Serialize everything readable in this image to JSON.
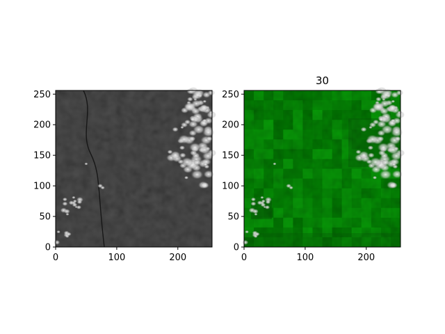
{
  "figure": {
    "background": "#ffffff"
  },
  "chart_data": [
    {
      "type": "heatmap",
      "title": "",
      "xlabel": "",
      "ylabel": "",
      "xlim": [
        0,
        256
      ],
      "ylim": [
        0,
        256
      ],
      "xticks": [
        0,
        100,
        200
      ],
      "yticks": [
        0,
        50,
        100,
        150,
        200,
        250
      ],
      "colormap": "grayscale satellite image",
      "colors": {
        "dark": "#151515",
        "mid": "#2a2a2a",
        "bright": "#e8e8e8"
      },
      "features": {
        "bright_clouds_region": "right edge, roughly x 180–256, y 100–256",
        "scattered_clouds_left": "around x 10–40, y 50–85",
        "small_bright_spot": "around x 70–80, y 95–105"
      }
    },
    {
      "type": "heatmap",
      "title": "30",
      "xlabel": "",
      "ylabel": "",
      "xlim": [
        0,
        256
      ],
      "ylim": [
        0,
        256
      ],
      "xticks": [
        0,
        100,
        200
      ],
      "yticks": [
        0,
        50,
        100,
        150,
        200,
        250
      ],
      "colormap": "green overlay on satellite image, blocky patches",
      "colors": {
        "dark": "#0c3d0c",
        "mid": "#1a7a1a",
        "bright": "#d0d8d0"
      },
      "features": {
        "bright_clouds_region": "right edge, roughly x 180–256, y 100–256",
        "scattered_clouds_left": "around x 10–40, y 50–85",
        "small_bright_spot": "around x 70–80, y 95–105"
      }
    }
  ]
}
